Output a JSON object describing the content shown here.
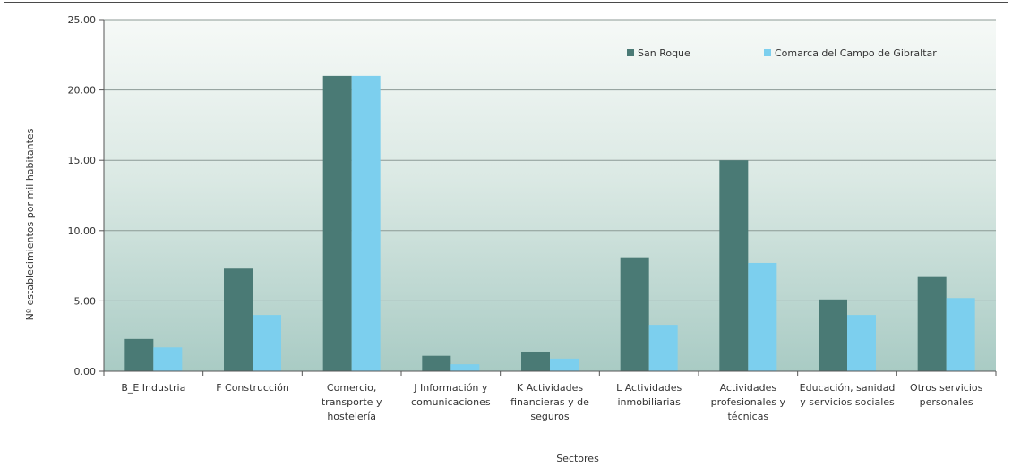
{
  "chart_data": {
    "type": "bar",
    "title": "",
    "xlabel": "Sectores",
    "ylabel": "Nº establecimientos por mil habitantes",
    "ylim": [
      0,
      25
    ],
    "yticks": [
      "0.00",
      "5.00",
      "10.00",
      "15.00",
      "20.00",
      "25.00"
    ],
    "grid": true,
    "legend_position": "top-right",
    "categories": [
      [
        "B_E Industria"
      ],
      [
        "F Construcción"
      ],
      [
        "Comercio,",
        "transporte y",
        "hostelería"
      ],
      [
        "J Información y",
        "comunicaciones"
      ],
      [
        "K Actividades",
        "financieras y de",
        "seguros"
      ],
      [
        "L Actividades",
        "inmobiliarias"
      ],
      [
        "Actividades",
        "profesionales y",
        "técnicas"
      ],
      [
        "Educación, sanidad",
        "y servicios sociales"
      ],
      [
        "Otros servicios",
        "personales"
      ]
    ],
    "series": [
      {
        "name": "San Roque",
        "color": "#4a7a75",
        "values": [
          2.3,
          7.3,
          21.0,
          1.1,
          1.4,
          8.1,
          15.0,
          5.1,
          6.7
        ]
      },
      {
        "name": "Comarca del Campo de Gibraltar",
        "color": "#7ccfee",
        "values": [
          1.7,
          4.0,
          21.0,
          0.5,
          0.9,
          3.3,
          7.7,
          4.0,
          5.2
        ]
      }
    ]
  }
}
